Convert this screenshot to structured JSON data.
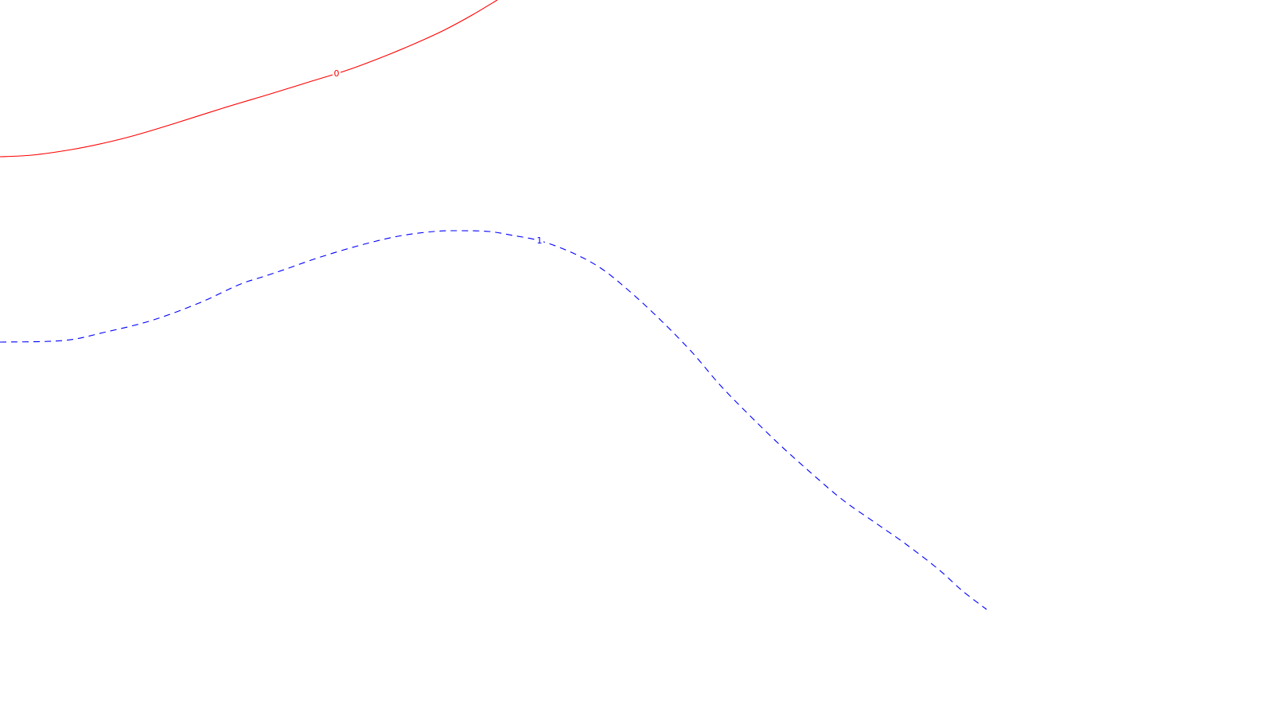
{
  "chart_data": {
    "type": "line",
    "title": "",
    "xlabel": "",
    "ylabel": "",
    "grid": false,
    "legend": "none",
    "series": [
      {
        "label": "0",
        "color": "#ff0000",
        "line_style": "solid",
        "points": [
          [
            0,
            197
          ],
          [
            40,
            195
          ],
          [
            90,
            188
          ],
          [
            130,
            180
          ],
          [
            170,
            170
          ],
          [
            220,
            155
          ],
          [
            280,
            136
          ],
          [
            340,
            118
          ],
          [
            395,
            101
          ],
          [
            440,
            87
          ],
          [
            490,
            68
          ],
          [
            530,
            51
          ],
          [
            560,
            37
          ],
          [
            595,
            18
          ],
          [
            625,
            0
          ]
        ]
      },
      {
        "label": "1",
        "color": "#0000ff",
        "line_style": "dashed",
        "points": [
          [
            0,
            430
          ],
          [
            80,
            428
          ],
          [
            130,
            418
          ],
          [
            190,
            403
          ],
          [
            250,
            381
          ],
          [
            300,
            358
          ],
          [
            330,
            348
          ],
          [
            360,
            338
          ],
          [
            400,
            324
          ],
          [
            450,
            309
          ],
          [
            500,
            297
          ],
          [
            545,
            291
          ],
          [
            580,
            290
          ],
          [
            615,
            291
          ],
          [
            645,
            296
          ],
          [
            680,
            303
          ],
          [
            720,
            318
          ],
          [
            755,
            337
          ],
          [
            790,
            365
          ],
          [
            830,
            402
          ],
          [
            870,
            443
          ],
          [
            905,
            484
          ],
          [
            940,
            520
          ],
          [
            980,
            559
          ],
          [
            1020,
            595
          ],
          [
            1060,
            629
          ],
          [
            1100,
            657
          ],
          [
            1140,
            685
          ],
          [
            1180,
            716
          ],
          [
            1210,
            743
          ],
          [
            1240,
            766
          ]
        ]
      }
    ]
  }
}
